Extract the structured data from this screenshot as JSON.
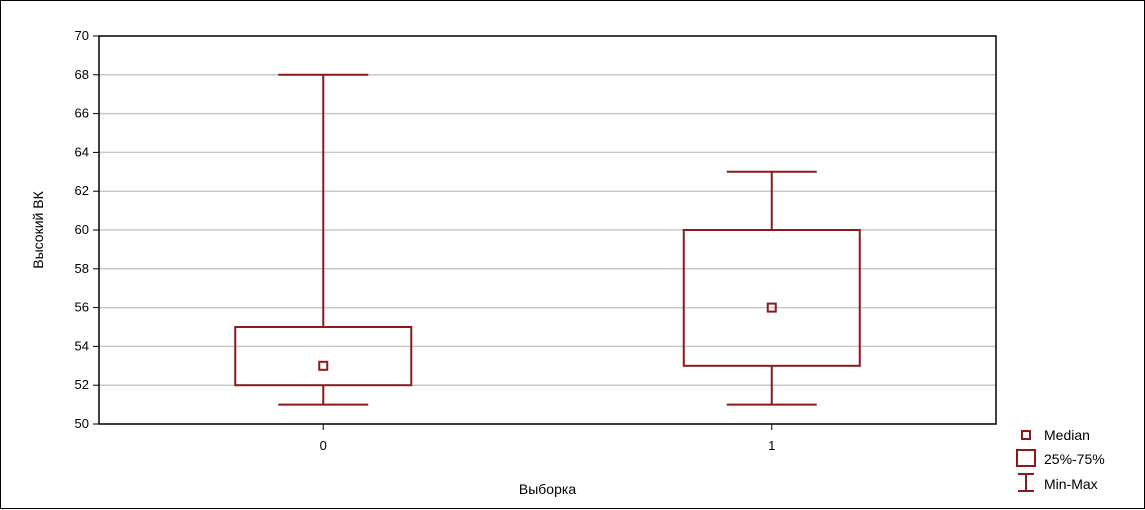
{
  "chart_data": {
    "type": "box",
    "xlabel": "Выборка",
    "ylabel": "Высокий ВК",
    "ylim": [
      50,
      70
    ],
    "yticks": [
      50,
      52,
      54,
      56,
      58,
      60,
      62,
      64,
      66,
      68,
      70
    ],
    "grid": "horizontal",
    "legend_position": "right",
    "categories": [
      "0",
      "1"
    ],
    "boxes": [
      {
        "category": "0",
        "min": 51,
        "q1": 52,
        "median": 53,
        "q3": 55,
        "max": 68
      },
      {
        "category": "1",
        "min": 51,
        "q1": 53,
        "median": 56,
        "q3": 60,
        "max": 63
      }
    ],
    "legend": {
      "median": "Median",
      "box": "25%-75%",
      "whisker": "Min-Max"
    },
    "colors": {
      "box": "#8b1a1a",
      "grid": "#c8c8c8",
      "axis": "#000000"
    }
  }
}
